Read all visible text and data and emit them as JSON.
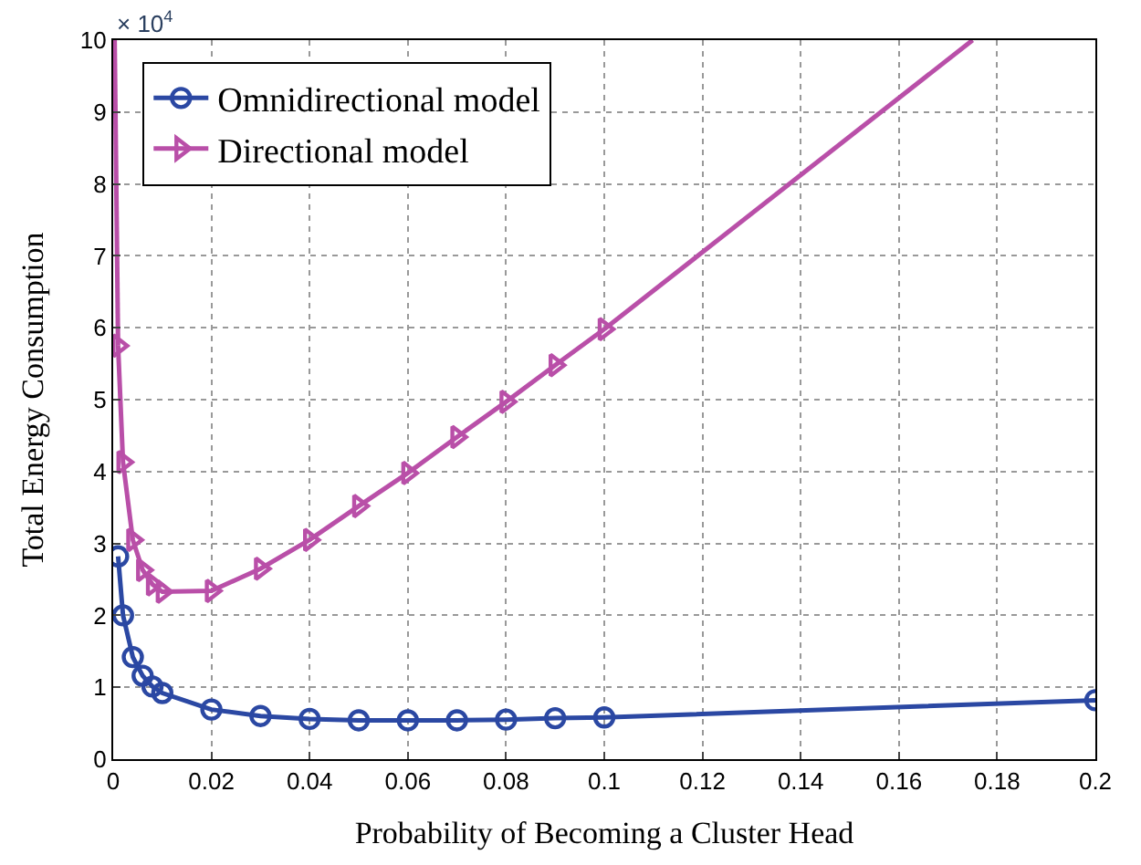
{
  "chart_data": {
    "type": "line",
    "xlabel": "Probability of Becoming a Cluster Head",
    "ylabel": "Total Energy Consumption",
    "annotations": [
      "× 10$^{4}$"
    ],
    "xlim": [
      0,
      0.2
    ],
    "xticks": [
      0,
      0.02,
      0.04,
      0.06,
      0.08,
      0.1,
      0.12,
      0.14,
      0.16,
      0.18,
      0.2
    ],
    "ylim": [
      0,
      10
    ],
    "yticks": [
      0,
      1,
      2,
      3,
      4,
      5,
      6,
      7,
      8,
      9,
      10
    ],
    "grid": true,
    "legend": "top left",
    "line_style": "solid",
    "series": [
      {
        "name": "Omnidirectional model",
        "color": "#2b48a3",
        "marker": "circle",
        "x": [
          0.001,
          0.002,
          0.004,
          0.006,
          0.008,
          0.01,
          0.02,
          0.03,
          0.04,
          0.05,
          0.06,
          0.07,
          0.08,
          0.09,
          0.1,
          0.2
        ],
        "values": [
          2.82,
          2.0,
          1.42,
          1.16,
          1.01,
          0.92,
          0.69,
          0.6,
          0.56,
          0.54,
          0.54,
          0.54,
          0.55,
          0.57,
          0.58,
          0.82
        ]
      },
      {
        "name": "Directional model",
        "color": "#b94fa8",
        "marker": "triangle",
        "x": [
          0.001,
          0.002,
          0.004,
          0.006,
          0.008,
          0.01,
          0.02,
          0.03,
          0.04,
          0.05,
          0.06,
          0.07,
          0.08,
          0.09,
          0.1
        ],
        "values": [
          5.75,
          4.13,
          3.05,
          2.63,
          2.43,
          2.33,
          2.34,
          2.65,
          3.05,
          3.52,
          3.98,
          4.48,
          4.97,
          5.48,
          5.98
        ]
      },
      {
        "color": "#b94fa8",
        "marker": "none",
        "x": [
          0.0003,
          0.001
        ],
        "values": [
          10,
          5.75
        ]
      },
      {
        "color": "#b94fa8",
        "marker": "none",
        "x": [
          0.1,
          0.175
        ],
        "values": [
          5.98,
          10
        ]
      }
    ]
  }
}
